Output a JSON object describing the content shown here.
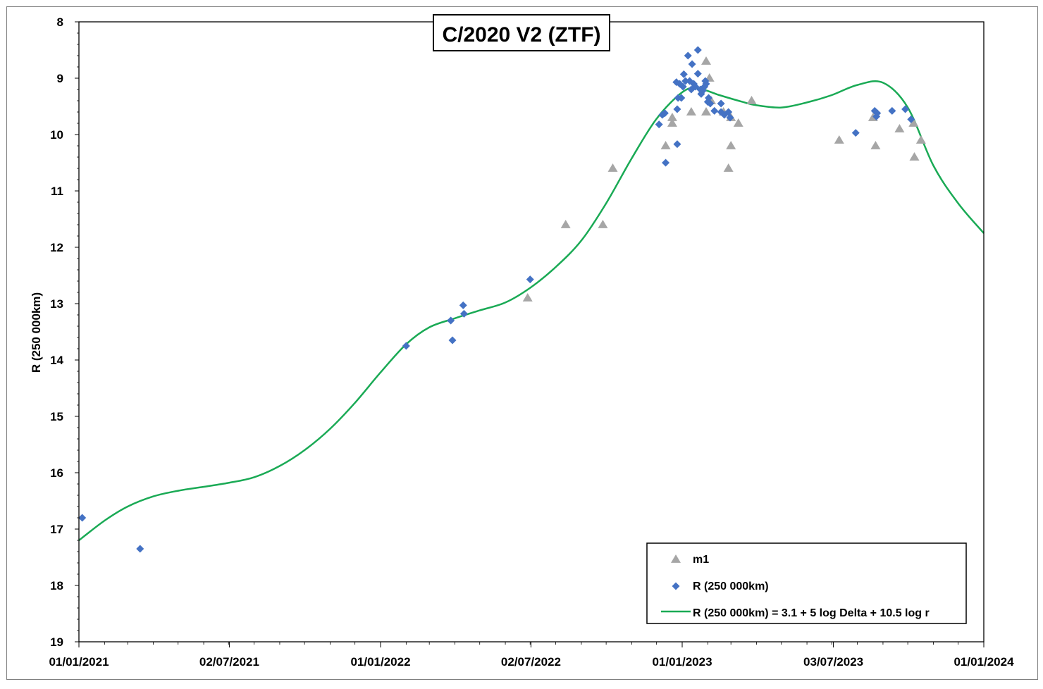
{
  "chart_data": {
    "type": "scatter",
    "title": "C/2020 V2 (ZTF)",
    "xlabel": "",
    "ylabel": "R (250 000km)",
    "x_axis": "date",
    "xlim": [
      "2021-01-01",
      "2024-01-01"
    ],
    "x_ticks": [
      "2021-01-01",
      "2021-07-02",
      "2022-01-01",
      "2022-07-02",
      "2023-01-01",
      "2023-07-03",
      "2024-01-01"
    ],
    "x_tick_labels": [
      "01/01/2021",
      "02/07/2021",
      "01/01/2022",
      "02/07/2022",
      "01/01/2023",
      "03/07/2023",
      "01/01/2024"
    ],
    "ylim": [
      19,
      8
    ],
    "y_reversed": true,
    "y_ticks": [
      8,
      9,
      10,
      11,
      12,
      13,
      14,
      15,
      16,
      17,
      18,
      19
    ],
    "y_tick_labels": [
      "8",
      "9",
      "10",
      "11",
      "12",
      "13",
      "14",
      "15",
      "16",
      "17",
      "18",
      "19"
    ],
    "grid": false,
    "legend_position": "bottom-right",
    "series": [
      {
        "name": "m1",
        "marker": "triangle",
        "color": "#a6a6a6",
        "points": [
          [
            "2022-06-28",
            12.9
          ],
          [
            "2022-08-13",
            11.6
          ],
          [
            "2022-09-27",
            11.6
          ],
          [
            "2022-10-09",
            10.6
          ],
          [
            "2022-12-12",
            10.2
          ],
          [
            "2022-12-20",
            9.7
          ],
          [
            "2022-12-20",
            9.8
          ],
          [
            "2023-01-12",
            9.6
          ],
          [
            "2023-01-30",
            8.7
          ],
          [
            "2023-01-30",
            9.6
          ],
          [
            "2023-02-03",
            9.0
          ],
          [
            "2023-02-05",
            9.4
          ],
          [
            "2023-02-20",
            9.6
          ],
          [
            "2023-02-26",
            10.6
          ],
          [
            "2023-03-01",
            10.2
          ],
          [
            "2023-03-01",
            9.7
          ],
          [
            "2023-03-10",
            9.8
          ],
          [
            "2023-03-26",
            9.4
          ],
          [
            "2023-07-10",
            10.1
          ],
          [
            "2023-08-20",
            9.7
          ],
          [
            "2023-08-23",
            10.2
          ],
          [
            "2023-09-21",
            9.9
          ],
          [
            "2023-10-08",
            9.8
          ],
          [
            "2023-10-09",
            10.4
          ],
          [
            "2023-10-17",
            10.1
          ]
        ]
      },
      {
        "name": "R (250 000km)",
        "marker": "diamond",
        "color": "#4472c4",
        "points": [
          [
            "2021-01-05",
            16.8
          ],
          [
            "2021-03-16",
            17.35
          ],
          [
            "2022-02-01",
            13.75
          ],
          [
            "2022-03-27",
            13.3
          ],
          [
            "2022-03-29",
            13.65
          ],
          [
            "2022-04-11",
            13.03
          ],
          [
            "2022-04-12",
            13.18
          ],
          [
            "2022-07-01",
            12.57
          ],
          [
            "2022-12-04",
            9.82
          ],
          [
            "2022-12-08",
            9.65
          ],
          [
            "2022-12-11",
            9.62
          ],
          [
            "2022-12-12",
            10.5
          ],
          [
            "2022-12-25",
            9.07
          ],
          [
            "2022-12-26",
            9.55
          ],
          [
            "2022-12-26",
            10.17
          ],
          [
            "2022-12-27",
            9.35
          ],
          [
            "2022-12-29",
            9.1
          ],
          [
            "2022-12-31",
            9.35
          ],
          [
            "2023-01-02",
            9.15
          ],
          [
            "2023-01-03",
            8.93
          ],
          [
            "2023-01-05",
            9.05
          ],
          [
            "2023-01-08",
            8.6
          ],
          [
            "2023-01-10",
            9.05
          ],
          [
            "2023-01-12",
            9.2
          ],
          [
            "2023-01-13",
            8.75
          ],
          [
            "2023-01-15",
            9.1
          ],
          [
            "2023-01-17",
            9.15
          ],
          [
            "2023-01-20",
            8.92
          ],
          [
            "2023-01-20",
            8.5
          ],
          [
            "2023-01-23",
            9.2
          ],
          [
            "2023-01-24",
            9.28
          ],
          [
            "2023-01-26",
            9.22
          ],
          [
            "2023-01-28",
            9.15
          ],
          [
            "2023-01-29",
            9.05
          ],
          [
            "2023-01-30",
            9.1
          ],
          [
            "2023-02-01",
            9.42
          ],
          [
            "2023-02-02",
            9.35
          ],
          [
            "2023-02-04",
            9.45
          ],
          [
            "2023-02-09",
            9.58
          ],
          [
            "2023-02-17",
            9.45
          ],
          [
            "2023-02-17",
            9.6
          ],
          [
            "2023-02-21",
            9.65
          ],
          [
            "2023-02-26",
            9.6
          ],
          [
            "2023-02-28",
            9.7
          ],
          [
            "2023-07-30",
            9.97
          ],
          [
            "2023-08-22",
            9.58
          ],
          [
            "2023-08-24",
            9.68
          ],
          [
            "2023-08-25",
            9.62
          ],
          [
            "2023-09-12",
            9.58
          ],
          [
            "2023-09-28",
            9.55
          ],
          [
            "2023-10-05",
            9.73
          ]
        ]
      },
      {
        "name": "R (250 000km) = 3.1 + 5 log Delta + 10.5 log r",
        "marker": "line",
        "color": "#1aaa55",
        "points": [
          [
            "2021-01-01",
            17.2
          ],
          [
            "2021-02-01",
            16.85
          ],
          [
            "2021-03-01",
            16.6
          ],
          [
            "2021-04-01",
            16.42
          ],
          [
            "2021-05-01",
            16.32
          ],
          [
            "2021-06-01",
            16.25
          ],
          [
            "2021-07-01",
            16.18
          ],
          [
            "2021-08-01",
            16.08
          ],
          [
            "2021-09-01",
            15.88
          ],
          [
            "2021-10-01",
            15.6
          ],
          [
            "2021-11-01",
            15.22
          ],
          [
            "2021-12-01",
            14.76
          ],
          [
            "2022-01-01",
            14.22
          ],
          [
            "2022-02-01",
            13.72
          ],
          [
            "2022-03-01",
            13.42
          ],
          [
            "2022-04-01",
            13.26
          ],
          [
            "2022-05-01",
            13.12
          ],
          [
            "2022-06-01",
            12.98
          ],
          [
            "2022-07-01",
            12.72
          ],
          [
            "2022-08-01",
            12.35
          ],
          [
            "2022-09-01",
            11.88
          ],
          [
            "2022-10-01",
            11.22
          ],
          [
            "2022-11-01",
            10.42
          ],
          [
            "2022-12-01",
            9.72
          ],
          [
            "2023-01-01",
            9.25
          ],
          [
            "2023-01-20",
            9.18
          ],
          [
            "2023-02-15",
            9.3
          ],
          [
            "2023-03-15",
            9.42
          ],
          [
            "2023-04-01",
            9.48
          ],
          [
            "2023-05-01",
            9.52
          ],
          [
            "2023-06-01",
            9.43
          ],
          [
            "2023-07-01",
            9.3
          ],
          [
            "2023-08-01",
            9.12
          ],
          [
            "2023-09-01",
            9.08
          ],
          [
            "2023-10-01",
            9.52
          ],
          [
            "2023-11-01",
            10.55
          ],
          [
            "2023-12-01",
            11.22
          ],
          [
            "2024-01-01",
            11.75
          ]
        ]
      }
    ]
  }
}
